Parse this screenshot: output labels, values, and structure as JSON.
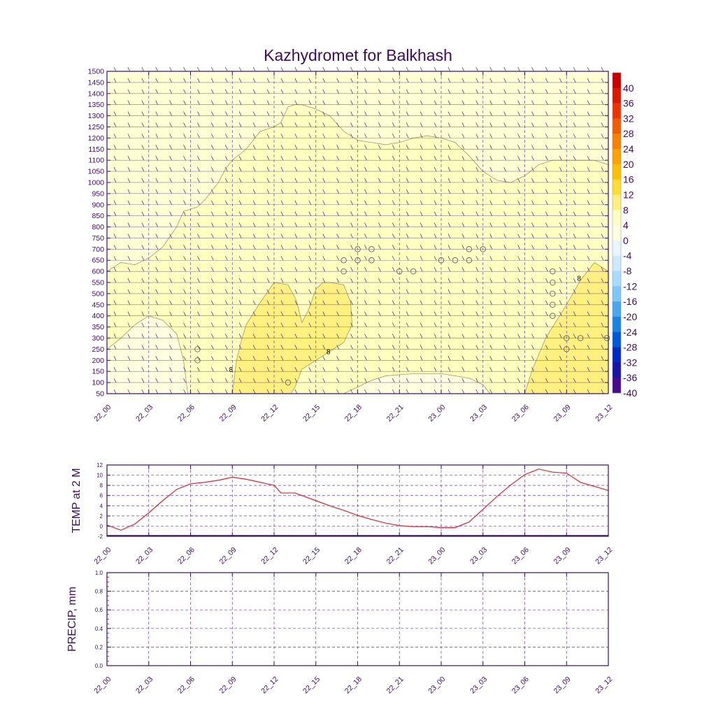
{
  "title": "Kazhydromet for Balkhash",
  "time_labels": [
    "22_00",
    "22_03",
    "22_06",
    "22_09",
    "22_12",
    "22_15",
    "22_18",
    "22_21",
    "23_00",
    "23_03",
    "23_06",
    "23_09",
    "23_12"
  ],
  "colors": {
    "axis": "#3d0a6b",
    "grid": "#6a3fb0",
    "fill_4_8": "#ffffc0",
    "fill_8_12": "#fff080",
    "fill_0_4": "#ffffe0",
    "temp_line": "#e8202a",
    "wind": "#5a3a8a"
  },
  "chart_data": [
    {
      "type": "heatmap",
      "name": "time-height-cross-section",
      "title": "Kazhydromet for Balkhash",
      "x_range": [
        0,
        36
      ],
      "y_range": [
        50,
        1500
      ],
      "y_ticks": [
        50,
        100,
        150,
        200,
        250,
        300,
        350,
        400,
        450,
        500,
        550,
        600,
        650,
        700,
        750,
        800,
        850,
        900,
        950,
        1000,
        1050,
        1100,
        1150,
        1200,
        1250,
        1300,
        1350,
        1400,
        1450,
        1500
      ],
      "contour_labels": [
        {
          "text": "8",
          "x": 8.9,
          "y": 160
        },
        {
          "text": "8",
          "x": 15.9,
          "y": 240
        },
        {
          "text": "8",
          "x": 33.9,
          "y": 570
        }
      ],
      "colorbar": {
        "labels": [
          "40",
          "36",
          "32",
          "28",
          "24",
          "20",
          "16",
          "12",
          "8",
          "4",
          "0",
          "-4",
          "-8",
          "-12",
          "-16",
          "-20",
          "-24",
          "-28",
          "-32",
          "-36",
          "-40"
        ],
        "colors": [
          "#cc0000",
          "#dd1800",
          "#ee3300",
          "#f55a00",
          "#fa8000",
          "#fca300",
          "#fdc000",
          "#fedc30",
          "#fff080",
          "#ffffc0",
          "#ffffe0",
          "#e8f6ff",
          "#cbeaff",
          "#a6dcff",
          "#7dc8f8",
          "#4aa8f0",
          "#1a84e6",
          "#0058dc",
          "#0028c8",
          "#1a14a8",
          "#4a0a90"
        ]
      },
      "regions": [
        {
          "value": "4-8",
          "top_profile": [
            [
              0,
              600
            ],
            [
              1,
              640
            ],
            [
              2,
              630
            ],
            [
              3,
              660
            ],
            [
              4,
              710
            ],
            [
              5,
              800
            ],
            [
              5.5,
              870
            ],
            [
              6.5,
              890
            ],
            [
              7,
              920
            ],
            [
              8,
              1000
            ],
            [
              8.5,
              1060
            ],
            [
              9,
              1100
            ],
            [
              10,
              1150
            ],
            [
              11,
              1230
            ],
            [
              12,
              1250
            ],
            [
              12.5,
              1270
            ],
            [
              13,
              1340
            ],
            [
              13.5,
              1350
            ],
            [
              14,
              1350
            ],
            [
              15,
              1330
            ],
            [
              16,
              1300
            ],
            [
              17,
              1230
            ],
            [
              18,
              1190
            ],
            [
              19,
              1180
            ],
            [
              20,
              1170
            ],
            [
              21,
              1180
            ],
            [
              22,
              1200
            ],
            [
              23,
              1210
            ],
            [
              24,
              1200
            ],
            [
              25,
              1180
            ],
            [
              26,
              1120
            ],
            [
              27,
              1050
            ],
            [
              28,
              1010
            ],
            [
              29,
              1000
            ],
            [
              30,
              1030
            ],
            [
              31,
              1080
            ],
            [
              32,
              1100
            ],
            [
              33,
              1100
            ],
            [
              34,
              1100
            ],
            [
              35,
              1100
            ],
            [
              36,
              1080
            ]
          ]
        },
        {
          "value": "0-4",
          "profile": [
            [
              0,
              250
            ],
            [
              1,
              300
            ],
            [
              2,
              360
            ],
            [
              3,
              400
            ],
            [
              4,
              380
            ],
            [
              5,
              320
            ],
            [
              5.5,
              200
            ],
            [
              5.8,
              50
            ]
          ]
        },
        {
          "value": "0-4",
          "profile": [
            [
              17,
              50
            ],
            [
              18,
              80
            ],
            [
              19,
              110
            ],
            [
              20,
              130
            ],
            [
              22,
              140
            ],
            [
              24,
              140
            ],
            [
              26,
              120
            ],
            [
              27,
              90
            ],
            [
              27.5,
              50
            ]
          ]
        },
        {
          "value": "8-12",
          "profile": [
            [
              9,
              50
            ],
            [
              9.3,
              200
            ],
            [
              9.7,
              300
            ],
            [
              10,
              360
            ],
            [
              11,
              460
            ],
            [
              12,
              550
            ],
            [
              13,
              540
            ],
            [
              13.6,
              470
            ],
            [
              14,
              370
            ],
            [
              14.5,
              430
            ],
            [
              15,
              520
            ],
            [
              15.5,
              550
            ],
            [
              16,
              550
            ],
            [
              17,
              540
            ],
            [
              17.5,
              460
            ],
            [
              17.6,
              360
            ],
            [
              17,
              280
            ],
            [
              15.5,
              220
            ],
            [
              14,
              160
            ],
            [
              13.5,
              80
            ],
            [
              13.2,
              50
            ]
          ]
        },
        {
          "value": "8-12",
          "profile": [
            [
              30,
              50
            ],
            [
              30.5,
              150
            ],
            [
              31.5,
              300
            ],
            [
              33,
              450
            ],
            [
              34,
              560
            ],
            [
              35,
              640
            ],
            [
              36,
              600
            ],
            [
              36,
              50
            ]
          ]
        }
      ],
      "calm_markers": [
        [
          6.5,
          250
        ],
        [
          6.5,
          200
        ],
        [
          13,
          100
        ],
        [
          18,
          700
        ],
        [
          19,
          700
        ],
        [
          17,
          650
        ],
        [
          18,
          650
        ],
        [
          19,
          650
        ],
        [
          17,
          600
        ],
        [
          21,
          600
        ],
        [
          22,
          600
        ],
        [
          24,
          650
        ],
        [
          25,
          650
        ],
        [
          26,
          650
        ],
        [
          26,
          700
        ],
        [
          27,
          700
        ],
        [
          32,
          600
        ],
        [
          32,
          550
        ],
        [
          32,
          500
        ],
        [
          32,
          450
        ],
        [
          32,
          400
        ],
        [
          33,
          300
        ],
        [
          34,
          300
        ],
        [
          35.9,
          300
        ],
        [
          33,
          250
        ]
      ]
    },
    {
      "type": "line",
      "name": "temp-2m",
      "ylabel": "TEMP at 2 M",
      "ylim": [
        -2,
        12
      ],
      "y_ticks": [
        -2,
        0,
        2,
        4,
        6,
        8,
        10,
        12
      ],
      "x": [
        0,
        1,
        2,
        3,
        4,
        5,
        6,
        7,
        8,
        9,
        10,
        11,
        12,
        12.5,
        13.5,
        14,
        15,
        16,
        17,
        18,
        19,
        20,
        21,
        22,
        23,
        24,
        25,
        26,
        27,
        28,
        29,
        30,
        31,
        32,
        33,
        34,
        35,
        36
      ],
      "values": [
        0.2,
        -0.8,
        0.4,
        2.6,
        5.0,
        7.2,
        8.3,
        8.6,
        9.0,
        9.6,
        9.2,
        8.6,
        8.0,
        6.5,
        6.5,
        6.0,
        5.0,
        4.0,
        3.1,
        2.1,
        1.3,
        0.6,
        0.1,
        -0.1,
        -0.1,
        -0.3,
        -0.3,
        0.8,
        3.3,
        5.8,
        8.1,
        10.1,
        11.2,
        10.6,
        10.4,
        8.6,
        7.8,
        7.0
      ]
    },
    {
      "type": "line",
      "name": "precip",
      "ylabel": "PRECIP, mm",
      "ylim": [
        0.0,
        1.0
      ],
      "y_ticks": [
        0.0,
        0.2,
        0.4,
        0.6,
        0.8,
        1.0
      ],
      "y_tick_labels": [
        "0.0",
        "0.2",
        "0.4",
        "0.6",
        "0.8",
        "1.0"
      ],
      "x": [],
      "values": []
    }
  ]
}
